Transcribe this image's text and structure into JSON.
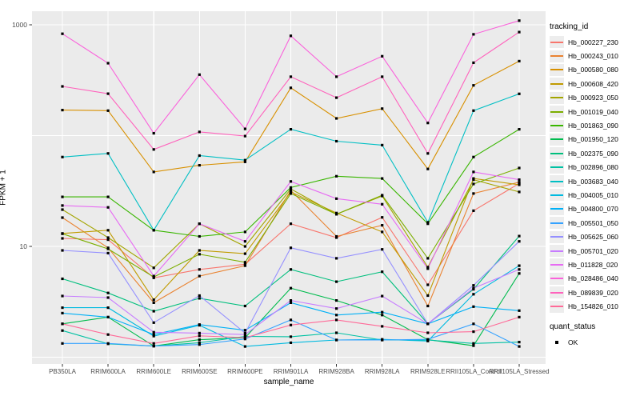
{
  "figure": {
    "background": "#FFFFFF",
    "panel_background": "#EBEBEB",
    "gridline_color": "#FFFFFF",
    "axis_text_color": "#4D4D4D",
    "tick_color": "#333333"
  },
  "chart_data": {
    "type": "line",
    "title": "",
    "xlabel": "sample_name",
    "ylabel": "FPKM + 1",
    "y_scale": "log10",
    "ylim": [
      0.87,
      1330
    ],
    "grid": "on",
    "legend_position": "right",
    "y_ticks": [
      {
        "label": "1000",
        "value": 1000
      },
      {
        "label": "10",
        "value": 10
      }
    ],
    "y_minor_gridlines": [
      100,
      1
    ],
    "categories": [
      "PB350LA",
      "RRIM600LA",
      "RRIM600LE",
      "RRIM600SE",
      "RRIM600PE",
      "RRIM901LA",
      "RRIM928BA",
      "RRIM928LA",
      "RRIM928LE",
      "RRII105LA_Control",
      "RRII105LA_Stressed"
    ],
    "series": [
      {
        "name": "Hb_000227_230",
        "color": "#F8766D",
        "values": [
          11.8,
          11.5,
          5.2,
          6.2,
          6.9,
          16,
          12,
          18.3,
          4.5,
          21,
          37
        ]
      },
      {
        "name": "Hb_000243_010",
        "color": "#EA8331",
        "values": [
          18.2,
          9.7,
          3.1,
          5.4,
          6.7,
          32,
          12.3,
          15.5,
          2.9,
          30,
          38
        ]
      },
      {
        "name": "Hb_000580_080",
        "color": "#D89000",
        "values": [
          170,
          168,
          47,
          54,
          58,
          270,
          143,
          175,
          50,
          284,
          470
        ]
      },
      {
        "name": "Hb_000608_420",
        "color": "#C09B00",
        "values": [
          13.1,
          14,
          3.3,
          9.2,
          8.6,
          31,
          20,
          13.5,
          3.6,
          41,
          36
        ]
      },
      {
        "name": "Hb_000923_050",
        "color": "#A3A500",
        "values": [
          21.5,
          12,
          6.4,
          16,
          10,
          33,
          19.5,
          28.5,
          6.5,
          40,
          31
        ]
      },
      {
        "name": "Hb_001019_040",
        "color": "#7CAE00",
        "values": [
          13,
          9.5,
          5.3,
          8.5,
          7.2,
          30,
          19.5,
          29,
          7.8,
          36.6,
          51
        ]
      },
      {
        "name": "Hb_001863_090",
        "color": "#39B600",
        "values": [
          28,
          28,
          14,
          12.3,
          13.5,
          34,
          43,
          41,
          16,
          64,
          114
        ]
      },
      {
        "name": "Hb_001950_120",
        "color": "#00BB4E",
        "values": [
          2.0,
          2.3,
          1.26,
          1.44,
          1.5,
          4.2,
          3.25,
          2.4,
          1.44,
          1.27,
          5.7
        ]
      },
      {
        "name": "Hb_002375_090",
        "color": "#00BF7D",
        "values": [
          5.1,
          3.8,
          2.6,
          3.4,
          2.9,
          6.2,
          4.8,
          5.9,
          2.0,
          4.1,
          12.4
        ]
      },
      {
        "name": "Hb_002896_080",
        "color": "#00C1A3",
        "values": [
          1.74,
          1.32,
          1.26,
          1.35,
          1.54,
          1.53,
          1.66,
          1.43,
          1.43,
          1.33,
          1.37
        ]
      },
      {
        "name": "Hb_003683_040",
        "color": "#00BFC4",
        "values": [
          64,
          69,
          14,
          66,
          60,
          114,
          89,
          82,
          16.5,
          168,
          238
        ]
      },
      {
        "name": "Hb_004005_010",
        "color": "#00BAE0",
        "values": [
          2.8,
          2.8,
          1.55,
          1.94,
          1.25,
          1.35,
          1.43,
          1.45,
          1.4,
          3.7,
          6.7
        ]
      },
      {
        "name": "Hb_004800_070",
        "color": "#00B0F6",
        "values": [
          2.5,
          2.3,
          1.6,
          1.97,
          1.75,
          3.1,
          2.4,
          2.55,
          2.0,
          2.86,
          2.63
        ]
      },
      {
        "name": "Hb_005501_050",
        "color": "#35A2FF",
        "values": [
          1.33,
          1.33,
          1.26,
          1.3,
          1.46,
          2.17,
          1.43,
          1.43,
          1.45,
          2.0,
          1.25
        ]
      },
      {
        "name": "Hb_005625_060",
        "color": "#9590FF",
        "values": [
          9.2,
          8.7,
          2.05,
          3.6,
          1.65,
          9.7,
          7.8,
          9.4,
          2.0,
          4.45,
          11.1
        ]
      },
      {
        "name": "Hb_005701_020",
        "color": "#C77CFF",
        "values": [
          3.57,
          3.45,
          1.68,
          1.65,
          1.6,
          3.25,
          2.75,
          3.56,
          2.0,
          4.2,
          6.2
        ]
      },
      {
        "name": "Hb_011828_020",
        "color": "#E76BF3",
        "values": [
          23.4,
          22.5,
          5.4,
          16,
          11.1,
          38.6,
          27,
          24,
          6.3,
          47,
          40
        ]
      },
      {
        "name": "Hb_028486_040",
        "color": "#FA62DB",
        "values": [
          830,
          450,
          105,
          355,
          115,
          795,
          340,
          520,
          130,
          820,
          1090
        ]
      },
      {
        "name": "Hb_089839_020",
        "color": "#FF62BC",
        "values": [
          278,
          239,
          75,
          108,
          99,
          340,
          220,
          340,
          69,
          455,
          860
        ]
      },
      {
        "name": "Hb_154826_010",
        "color": "#FF6A98",
        "values": [
          2.0,
          1.6,
          1.33,
          1.56,
          1.5,
          1.95,
          2.17,
          1.9,
          1.66,
          1.7,
          2.3
        ]
      }
    ],
    "legend": {
      "tracking_title": "tracking_id",
      "quant_title": "quant_status",
      "quant_ok_label": "OK"
    }
  }
}
